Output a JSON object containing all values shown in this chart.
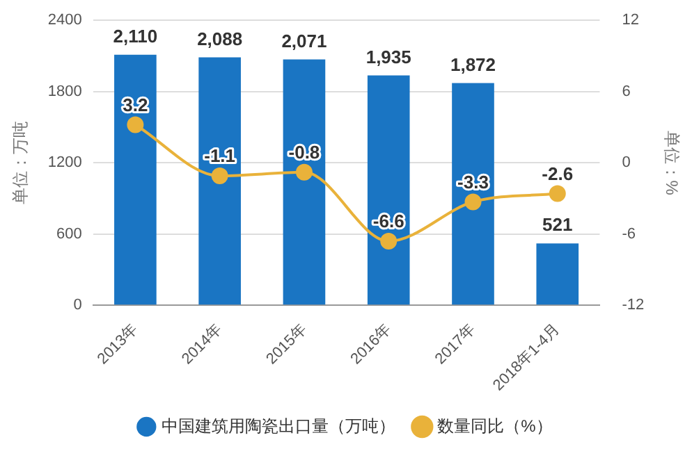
{
  "chart_data": {
    "type": "bar",
    "ylabel": "单位：万吨",
    "y2label": "单位：%",
    "categories": [
      "2013年",
      "2014年",
      "2015年",
      "2016年",
      "2017年",
      "2018年1-4月"
    ],
    "series": [
      {
        "name": "中国建筑用陶瓷出口量（万吨）",
        "color": "#1a75c3",
        "values": [
          2110,
          2088,
          2071,
          1935,
          1872,
          521
        ],
        "value_labels": [
          "2,110",
          "2,088",
          "2,071",
          "1,935",
          "1,872",
          "521"
        ]
      },
      {
        "name": "数量同比（%）",
        "type": "line",
        "axis": "y2",
        "color": "#e9b23a",
        "values": [
          3.2,
          -1.1,
          -0.8,
          -6.6,
          -3.3,
          -2.6
        ],
        "value_labels": [
          "3.2",
          "-1.1",
          "-0.8",
          "-6.6",
          "-3.3",
          "-2.6"
        ]
      }
    ],
    "ylim": [
      0,
      2400
    ],
    "yticks": [
      0,
      600,
      1200,
      1800,
      2400
    ],
    "y2lim": [
      -12,
      12
    ],
    "y2ticks": [
      -12,
      -6,
      0,
      6,
      12
    ],
    "grid": "y",
    "legend": "bottom",
    "marker": "circle",
    "line_style": "solid"
  }
}
